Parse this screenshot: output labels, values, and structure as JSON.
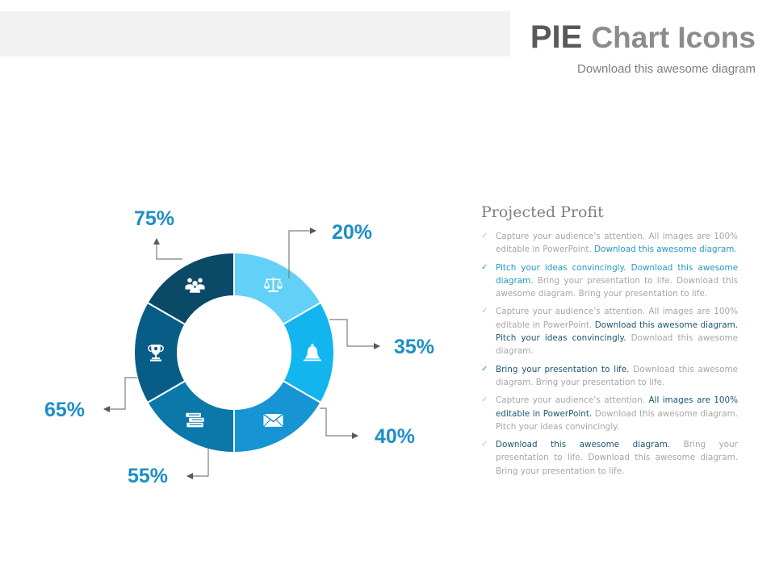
{
  "header": {
    "title_part1": "PIE",
    "title_part2": "Chart Icons",
    "subtitle": "Download this awesome diagram"
  },
  "colors": {
    "lightest": "#63d1f7",
    "bright": "#12b5ee",
    "medium": "#1694d3",
    "steel": "#0a78a9",
    "deep": "#075d86",
    "darkest": "#0a4a67",
    "label": "#1c8fc6"
  },
  "chart_data": {
    "type": "pie",
    "style": "donut",
    "segments": [
      {
        "label": "20%",
        "value": 20,
        "icon": "scales-icon",
        "color": "#63d1f7"
      },
      {
        "label": "35%",
        "value": 35,
        "icon": "bell-icon",
        "color": "#12b5ee"
      },
      {
        "label": "40%",
        "value": 40,
        "icon": "envelope-icon",
        "color": "#1694d3"
      },
      {
        "label": "55%",
        "value": 55,
        "icon": "books-icon",
        "color": "#0a78a9"
      },
      {
        "label": "65%",
        "value": 65,
        "icon": "trophy-icon",
        "color": "#075d86"
      },
      {
        "label": "75%",
        "value": 75,
        "icon": "people-icon",
        "color": "#0a4a67"
      }
    ],
    "note": "six ring segments of equal size; the percentages are callout labels"
  },
  "side_panel": {
    "title": "Projected Profit",
    "bullets": [
      {
        "check_color": "#bfbfbf",
        "parts": [
          {
            "text": "Capture your audience’s attention. All images are 100% editable in PowerPoint. ",
            "style": "muted"
          },
          {
            "text": "Download this awesome diagram.",
            "style": "hl"
          }
        ]
      },
      {
        "check_color": "#2597c9",
        "parts": [
          {
            "text": "Pitch your ideas convincingly. Download this awesome diagram. ",
            "style": "hl"
          },
          {
            "text": "Bring your presentation to life. Download this awesome diagram. Bring your presentation to life.",
            "style": "muted"
          }
        ]
      },
      {
        "check_color": "#bfbfbf",
        "parts": [
          {
            "text": "Capture your audience’s attention. All images are 100% editable in PowerPoint. ",
            "style": "muted"
          },
          {
            "text": "Download this awesome diagram. Pitch your ideas convincingly. ",
            "style": "dk"
          },
          {
            "text": "Download this awesome diagram.",
            "style": "muted"
          }
        ]
      },
      {
        "check_color": "#2597c9",
        "parts": [
          {
            "text": "Bring your presentation to life. ",
            "style": "dk"
          },
          {
            "text": "Download this awesome diagram. Bring your presentation to life.",
            "style": "muted"
          }
        ]
      },
      {
        "check_color": "#bfbfbf",
        "parts": [
          {
            "text": "Capture your audience’s attention. ",
            "style": "muted"
          },
          {
            "text": "All images are 100% editable in PowerPoint. ",
            "style": "dk"
          },
          {
            "text": "Download this awesome diagram. Pitch your ideas convincingly.",
            "style": "muted"
          }
        ]
      },
      {
        "check_color": "#bfbfbf",
        "parts": [
          {
            "text": "Download this awesome diagram. ",
            "style": "dk"
          },
          {
            "text": "Bring your presentation to life. Download this awesome diagram. Bring your presentation to life.",
            "style": "muted"
          }
        ]
      }
    ]
  }
}
